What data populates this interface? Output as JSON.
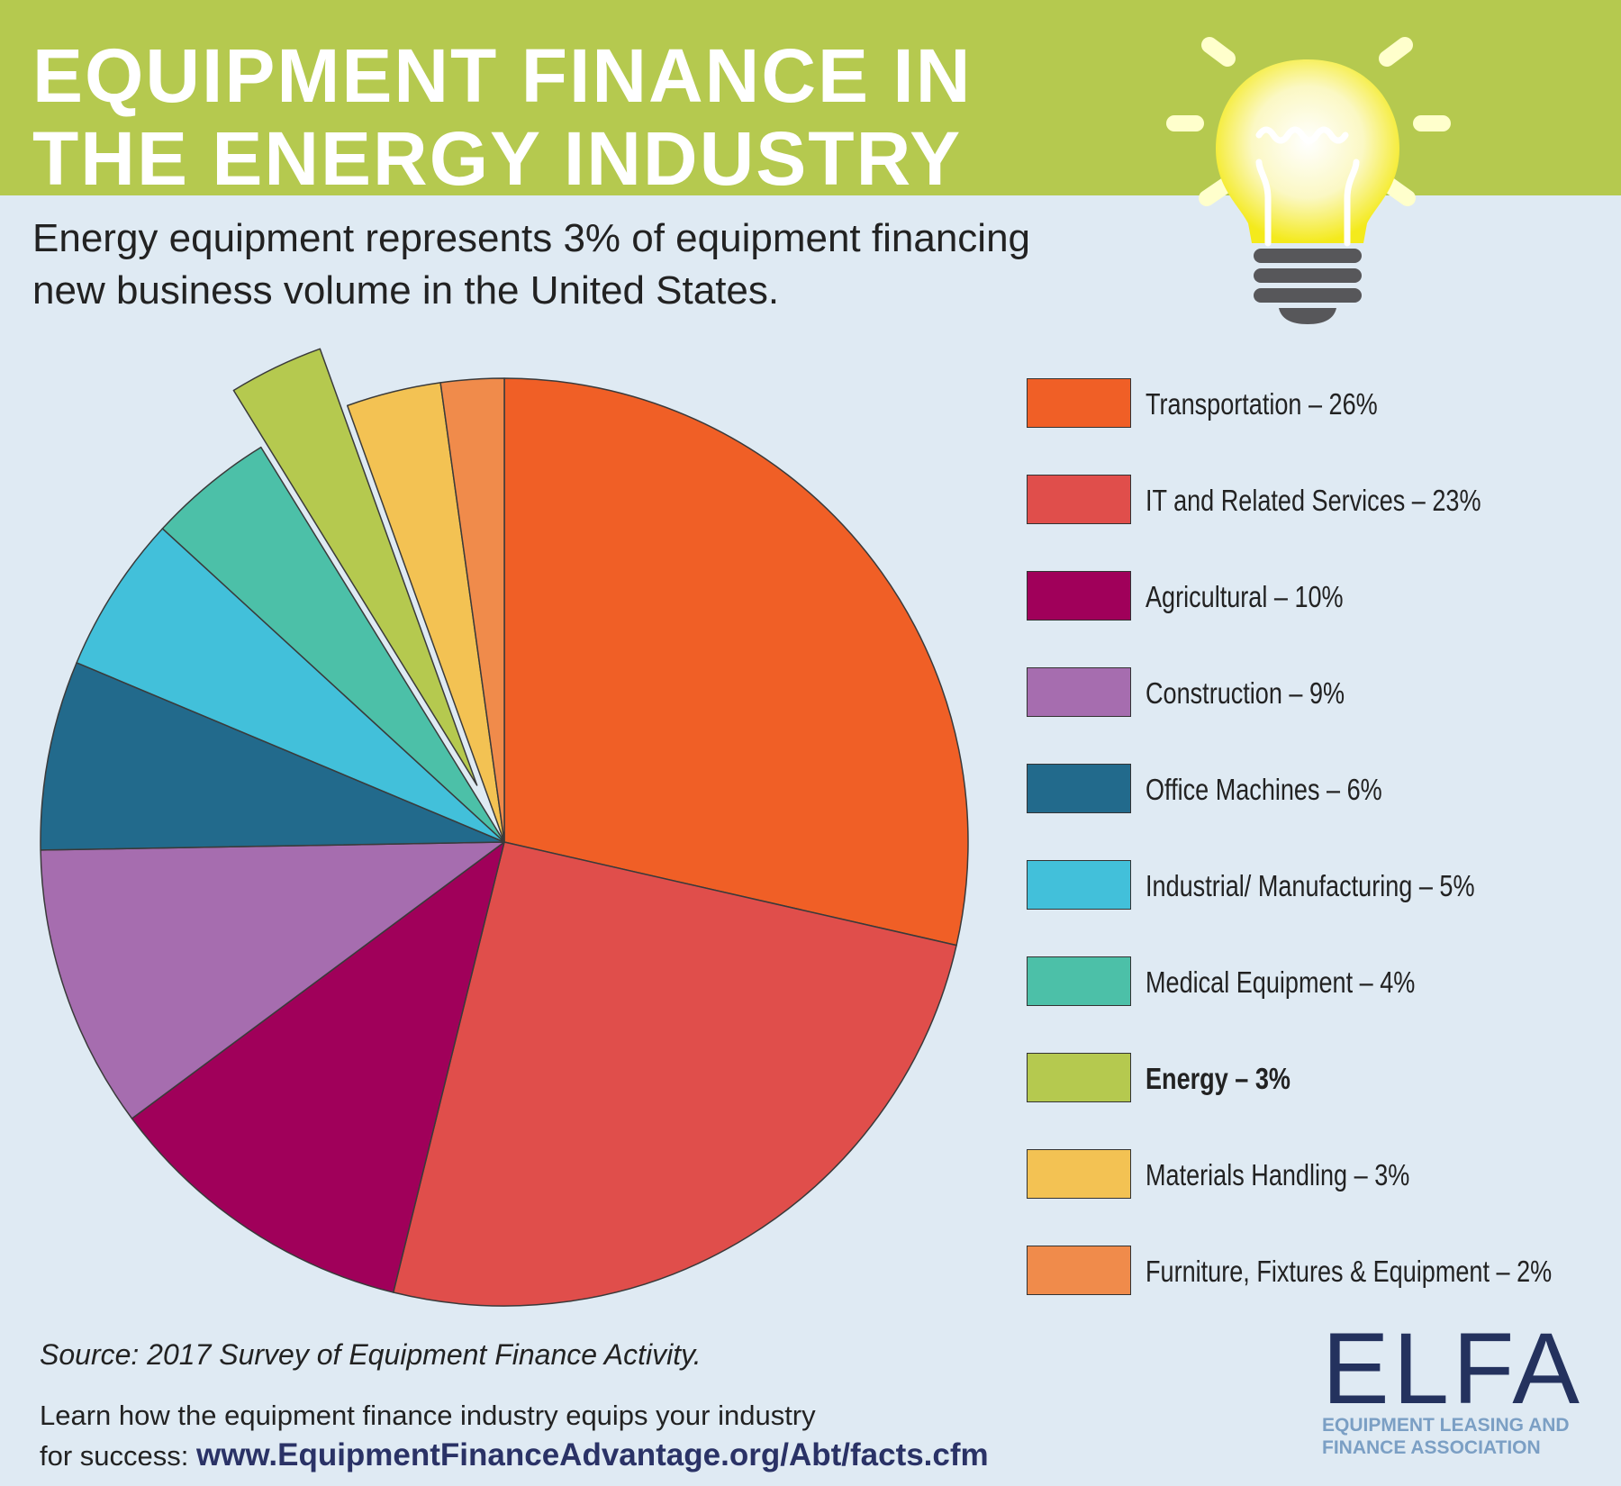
{
  "header": {
    "title": "EQUIPMENT FINANCE IN\nTHE ENERGY INDUSTRY",
    "background_color": "#b5c94f"
  },
  "subtitle": "Energy equipment represents 3% of equipment financing new business volume in the United States.",
  "icons": {
    "lightbulb": "lightbulb-icon"
  },
  "chart_data": {
    "type": "pie",
    "title": "",
    "exploded": "Energy",
    "slices": [
      {
        "label": "Transportation",
        "value": 26,
        "legend": "Transportation – 26%",
        "color": "#f05f26"
      },
      {
        "label": "IT and Related Services",
        "value": 23,
        "legend": "IT and Related Services – 23%",
        "color": "#e04e4b"
      },
      {
        "label": "Agricultural",
        "value": 10,
        "legend": "Agricultural – 10%",
        "color": "#a0005a"
      },
      {
        "label": "Construction",
        "value": 9,
        "legend": "Construction – 9%",
        "color": "#a66daf"
      },
      {
        "label": "Office Machines",
        "value": 6,
        "legend": "Office Machines – 6%",
        "color": "#226a8c"
      },
      {
        "label": "Industrial/ Manufacturing",
        "value": 5,
        "legend": "Industrial/ Manufacturing – 5%",
        "color": "#42c0da"
      },
      {
        "label": "Medical Equipment",
        "value": 4,
        "legend": "Medical Equipment – 4%",
        "color": "#4cc0a8"
      },
      {
        "label": "Energy",
        "value": 3,
        "legend": "Energy – 3%",
        "color": "#b5c94f",
        "bold": true
      },
      {
        "label": "Materials Handling",
        "value": 3,
        "legend": "Materials Handling – 3%",
        "color": "#f3c253"
      },
      {
        "label": "Furniture, Fixtures & Equipment",
        "value": 2,
        "legend": "Furniture, Fixtures & Equipment – 2%",
        "color": "#f08b4b"
      }
    ],
    "legend_position": "right"
  },
  "footer": {
    "source": "Source: 2017 Survey of Equipment Finance Activity.",
    "cta_line1": "Learn how the equipment finance industry equips your industry",
    "cta_line2_prefix": "for success: ",
    "cta_link": "www.EquipmentFinanceAdvantage.org/Abt/facts.cfm"
  },
  "logo": {
    "wordmark": "ELFA",
    "tagline": "EQUIPMENT LEASING AND\nFINANCE ASSOCIATION",
    "primary_color": "#24325e",
    "accent_color": "#7b9fc4"
  }
}
